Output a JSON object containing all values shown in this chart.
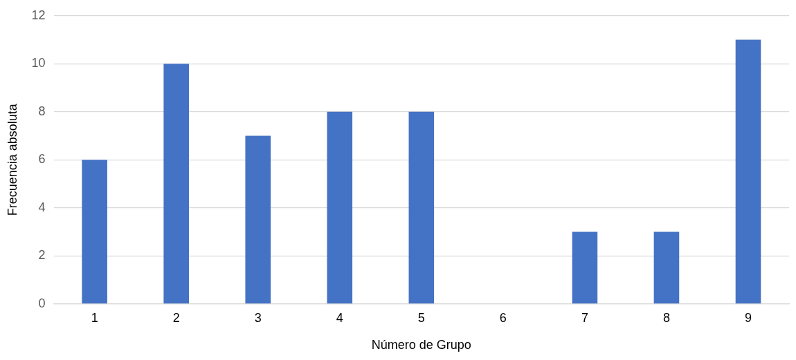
{
  "chart_data": {
    "type": "bar",
    "xlabel": "Número de Grupo",
    "ylabel": "Frecuencia absoluta",
    "categories": [
      "1",
      "2",
      "3",
      "4",
      "5",
      "6",
      "7",
      "8",
      "9"
    ],
    "values": [
      6,
      10,
      7,
      8,
      8,
      0,
      3,
      3,
      11
    ],
    "color": "#4472c4",
    "ylim": [
      0,
      12
    ],
    "yticks": [
      0,
      2,
      4,
      6,
      8,
      10,
      12
    ],
    "grid": "y",
    "legend": false
  }
}
